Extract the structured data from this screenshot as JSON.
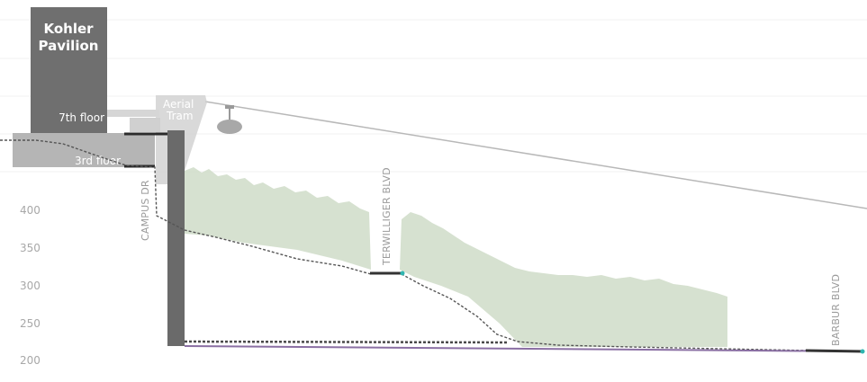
{
  "building": {
    "name_line1": "Kohler",
    "name_line2": "Pavilion",
    "floor_upper": "7th floor",
    "floor_lower": "3rd floor"
  },
  "tram": {
    "line1": "Aerial",
    "line2": "Tram"
  },
  "streets": {
    "campus": "CAMPUS DR",
    "terwilliger": "TERWILLIGER BLVD",
    "barbur": "BARBUR BLVD"
  },
  "y_axis": {
    "ticks": [
      400,
      350,
      300,
      250,
      200
    ]
  },
  "colors": {
    "building": "#6f6f6f",
    "building_light": "#b3b3b3",
    "trees": "#cfdcc8",
    "walkway": "#333333",
    "accent": "#2fb5b0",
    "purple": "#8a6fa3"
  }
}
